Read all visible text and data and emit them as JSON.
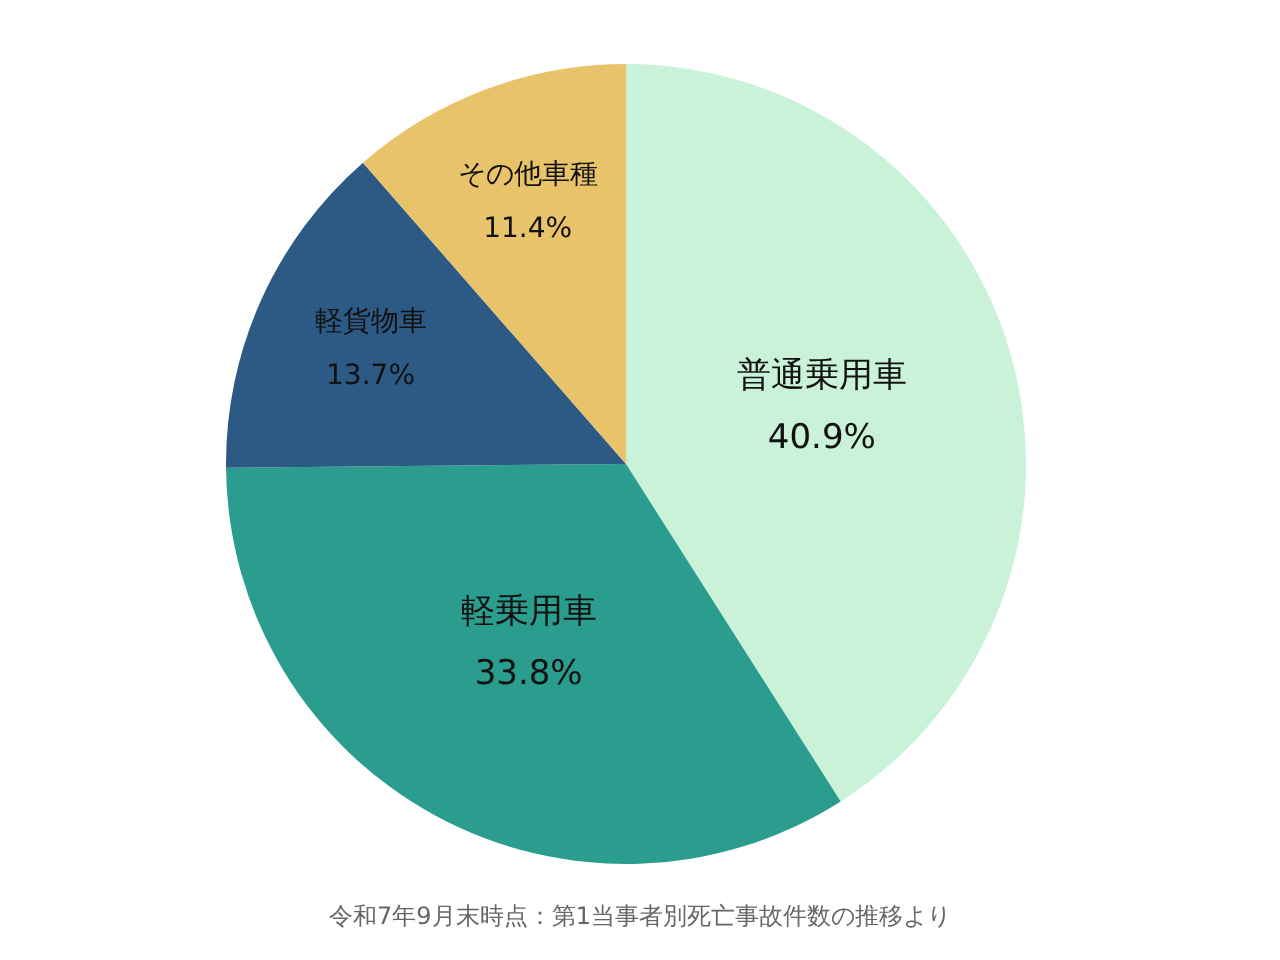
{
  "chart_data": {
    "type": "pie",
    "categories": [
      "普通乗用車",
      "軽乗用車",
      "軽貨物車",
      "その他車種"
    ],
    "values": [
      40.9,
      33.8,
      13.7,
      11.4
    ],
    "colors": [
      "#c9f2d8",
      "#2a9d8f",
      "#2d5a85",
      "#e8c36a"
    ],
    "value_labels": [
      "40.9%",
      "33.8%",
      "13.7%",
      "11.4%"
    ],
    "annotations": [
      "令和7年9月末時点：第1当事者別死亡事故件数の推移より"
    ]
  }
}
